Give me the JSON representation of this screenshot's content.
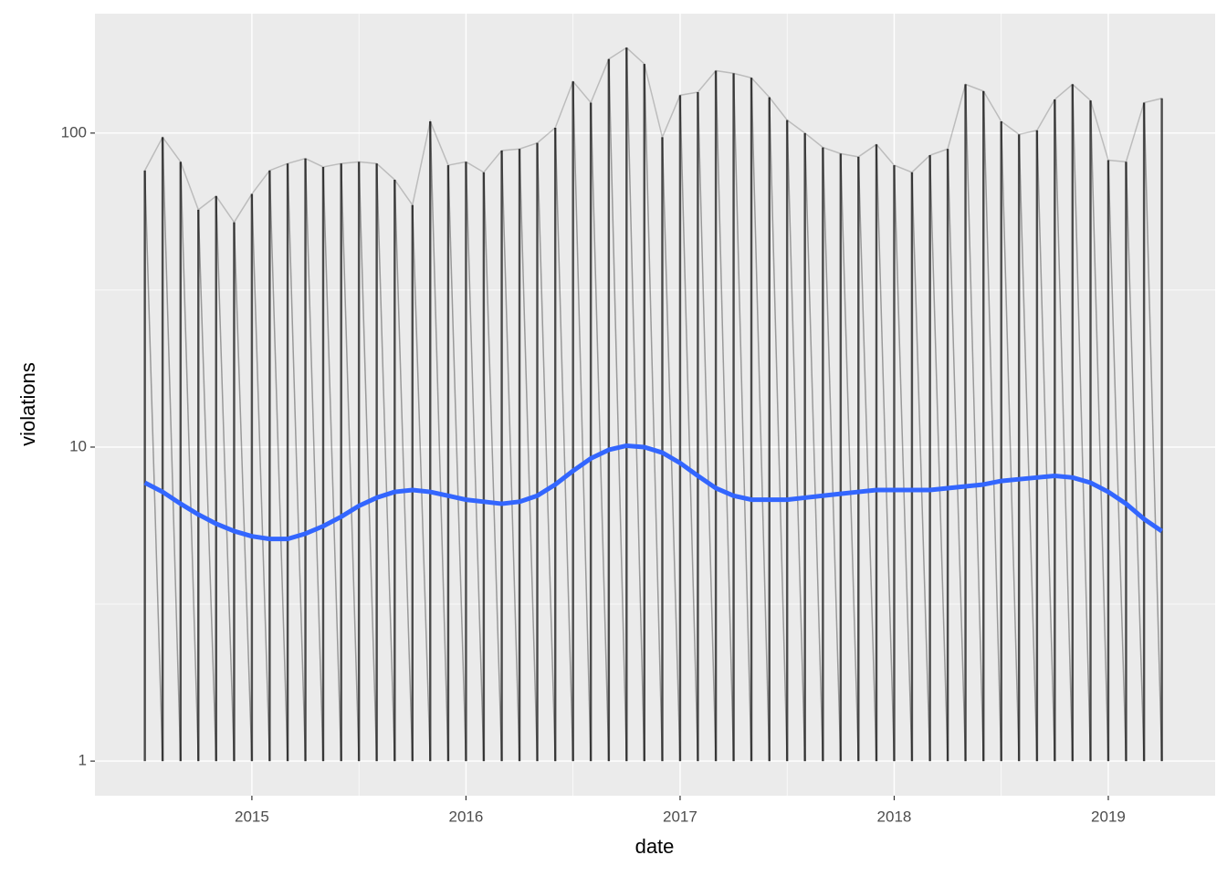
{
  "chart_data": {
    "type": "line",
    "x_label": "date",
    "y_label": "violations",
    "x": [
      2014.5,
      2014.583,
      2014.667,
      2014.75,
      2014.833,
      2014.917,
      2015,
      2015.083,
      2015.167,
      2015.25,
      2015.333,
      2015.417,
      2015.5,
      2015.583,
      2015.667,
      2015.75,
      2015.833,
      2015.917,
      2016,
      2016.083,
      2016.167,
      2016.25,
      2016.333,
      2016.417,
      2016.5,
      2016.583,
      2016.667,
      2016.75,
      2016.833,
      2016.917,
      2017,
      2017.083,
      2017.167,
      2017.25,
      2017.333,
      2017.417,
      2017.5,
      2017.583,
      2017.667,
      2017.75,
      2017.833,
      2017.917,
      2018,
      2018.083,
      2018.167,
      2018.25,
      2018.333,
      2018.417,
      2018.5,
      2018.583,
      2018.667,
      2018.75,
      2018.833,
      2018.917,
      2019,
      2019.083,
      2019.167,
      2019.25
    ],
    "high": [
      76,
      97,
      81,
      57,
      63,
      52,
      64,
      76,
      80,
      83,
      78,
      80,
      81,
      80,
      71,
      59,
      109,
      79,
      81,
      75,
      88,
      89,
      93,
      104,
      146,
      125,
      172,
      187,
      166,
      97,
      132,
      135,
      158,
      155,
      150,
      130,
      110,
      100,
      90,
      86,
      84,
      92,
      79,
      75,
      85,
      89,
      143,
      136,
      109,
      99,
      102,
      128,
      143,
      127,
      82,
      81,
      125,
      129
    ],
    "low": [
      1,
      1,
      1,
      1,
      1,
      1,
      1,
      1,
      1,
      1,
      1,
      1,
      1,
      1,
      1,
      1,
      1,
      1,
      1,
      1,
      1,
      1,
      1,
      1,
      1,
      1,
      1,
      1,
      1,
      1,
      1,
      1,
      1,
      1,
      1,
      1,
      1,
      1,
      1,
      1,
      1,
      1,
      1,
      1,
      1,
      1,
      1,
      1,
      1,
      1,
      1,
      1,
      1,
      1,
      1,
      1,
      1,
      1
    ],
    "trend": {
      "color": "#3366ff",
      "values": [
        7.7,
        7.2,
        6.6,
        6.1,
        5.7,
        5.4,
        5.2,
        5.1,
        5.1,
        5.3,
        5.6,
        6.0,
        6.5,
        6.9,
        7.2,
        7.3,
        7.2,
        7.0,
        6.8,
        6.7,
        6.6,
        6.7,
        7.0,
        7.6,
        8.4,
        9.2,
        9.8,
        10.1,
        10.0,
        9.6,
        8.9,
        8.1,
        7.4,
        7.0,
        6.8,
        6.8,
        6.8,
        6.9,
        7.0,
        7.1,
        7.2,
        7.3,
        7.3,
        7.3,
        7.3,
        7.4,
        7.5,
        7.6,
        7.8,
        7.9,
        8.0,
        8.1,
        8.0,
        7.7,
        7.2,
        6.6,
        5.9,
        5.4
      ]
    },
    "range_color": "#000000",
    "xlim": [
      2014.267,
      2019.499
    ],
    "xticks": [
      2015,
      2016,
      2017,
      2018,
      2019
    ],
    "ylim": [
      0.776,
      240
    ],
    "yticks": [
      1,
      10,
      100
    ],
    "log_y": true,
    "grid": true
  }
}
